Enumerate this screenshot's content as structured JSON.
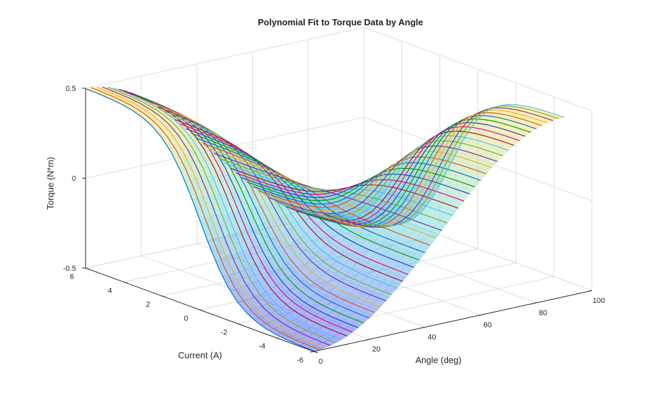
{
  "chart_data": {
    "type": "surface",
    "title": "Polynomial Fit to Torque Data by Angle",
    "xlabel": "Angle (deg)",
    "ylabel": "Current (A)",
    "zlabel": "Torque (N*m)",
    "xlim": [
      0,
      100
    ],
    "ylim": [
      -6,
      6
    ],
    "zlim": [
      -0.5,
      0.5
    ],
    "xticks": [
      "0",
      "20",
      "40",
      "60",
      "80",
      "100"
    ],
    "xtick_values": [
      0,
      20,
      40,
      60,
      80,
      100
    ],
    "yticks": [
      "-6",
      "-4",
      "-2",
      "0",
      "2",
      "4",
      "6"
    ],
    "ytick_values": [
      -6,
      -4,
      -2,
      0,
      2,
      4,
      6
    ],
    "zticks": [
      "-0.5",
      "0",
      "0.5"
    ],
    "ztick_values": [
      -0.5,
      0,
      0.5
    ],
    "grid": true,
    "colormap": "cool-hsv surface with semi-transparent fill",
    "surface_model": "torque = 0.5 * tanh(current / 2) * cos(2 * angle_deg * pi / 180)",
    "series": {
      "angle_start": 0,
      "angle_end": 90,
      "angle_step": 2,
      "count": 46,
      "current_min": -6,
      "current_max": 6
    },
    "line_colors": [
      "#0072BD",
      "#D95319",
      "#EDB120",
      "#7E2F8E",
      "#77AC30",
      "#4DBEEE",
      "#A2142F",
      "#E6007E",
      "#1F3FBF",
      "#00A000"
    ]
  }
}
